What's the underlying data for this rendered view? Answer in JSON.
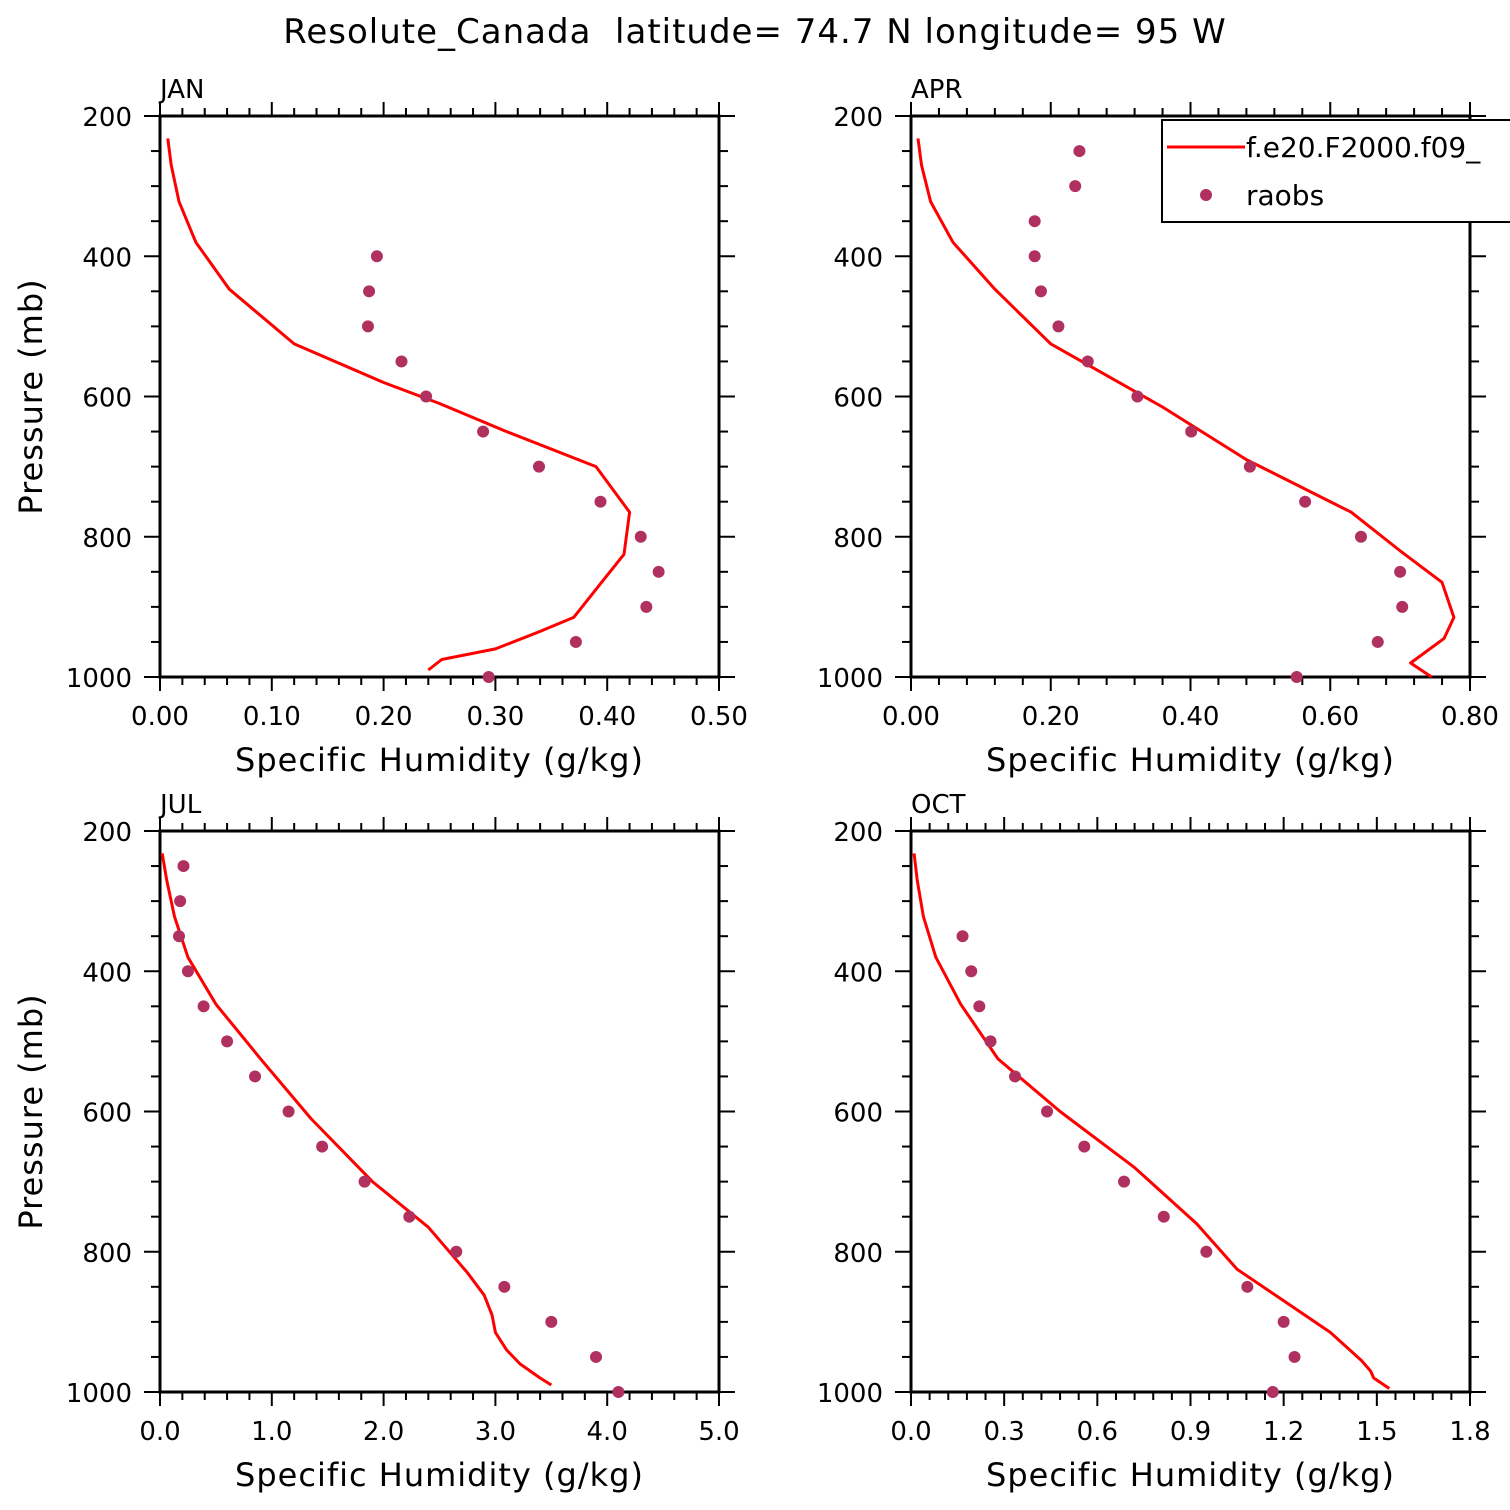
{
  "title": "Resolute_Canada  latitude= 74.7 N longitude= 95 W",
  "legend": {
    "model": "f.e20.F2000.f09_",
    "obs": "raobs"
  },
  "colors": {
    "model_line": "#ff0000",
    "obs_marker": "#b03060"
  },
  "chart_data": [
    {
      "type": "line",
      "panel": "JAN",
      "xlabel": "Specific Humidity (g/kg)",
      "ylabel": "Pressure (mb)",
      "xlim": [
        0.0,
        0.5
      ],
      "ylim": [
        200,
        1000
      ],
      "y_inverted": true,
      "xticks": [
        "0.00",
        "0.10",
        "0.20",
        "0.30",
        "0.40",
        "0.50"
      ],
      "yticks": [
        "200",
        "400",
        "600",
        "800",
        "1000"
      ],
      "series": [
        {
          "name": "f.e20.F2000.f09_",
          "kind": "line",
          "x": [
            0.007,
            0.01,
            0.017,
            0.032,
            0.062,
            0.12,
            0.2,
            0.25,
            0.31,
            0.39,
            0.42,
            0.415,
            0.395,
            0.37,
            0.34,
            0.3,
            0.252,
            0.24
          ],
          "y": [
            232,
            270,
            322,
            380,
            447,
            525,
            580,
            610,
            650,
            700,
            765,
            825,
            865,
            915,
            935,
            960,
            975,
            990
          ]
        },
        {
          "name": "raobs",
          "kind": "scatter",
          "x": [
            0.194,
            0.187,
            0.186,
            0.216,
            0.238,
            0.289,
            0.339,
            0.394,
            0.43,
            0.446,
            0.435,
            0.372,
            0.294
          ],
          "y": [
            400,
            450,
            500,
            550,
            600,
            650,
            700,
            750,
            800,
            850,
            900,
            950,
            1000
          ]
        }
      ]
    },
    {
      "type": "line",
      "panel": "APR",
      "xlabel": "Specific Humidity (g/kg)",
      "ylabel": "",
      "xlim": [
        0.0,
        0.8
      ],
      "ylim": [
        200,
        1000
      ],
      "y_inverted": true,
      "xticks": [
        "0.00",
        "0.20",
        "0.40",
        "0.60",
        "0.80"
      ],
      "yticks": [
        "200",
        "400",
        "600",
        "800",
        "1000"
      ],
      "legend_position": "top-right",
      "series": [
        {
          "name": "f.e20.F2000.f09_",
          "kind": "line",
          "x": [
            0.01,
            0.015,
            0.028,
            0.06,
            0.12,
            0.2,
            0.36,
            0.48,
            0.63,
            0.7,
            0.76,
            0.777,
            0.763,
            0.715,
            0.745
          ],
          "y": [
            232,
            270,
            322,
            380,
            447,
            525,
            615,
            690,
            765,
            820,
            865,
            915,
            945,
            980,
            1000
          ]
        },
        {
          "name": "raobs",
          "kind": "scatter",
          "x": [
            0.241,
            0.235,
            0.177,
            0.177,
            0.186,
            0.211,
            0.253,
            0.324,
            0.401,
            0.485,
            0.564,
            0.644,
            0.7,
            0.703,
            0.668,
            0.552
          ],
          "y": [
            250,
            300,
            350,
            400,
            450,
            500,
            550,
            600,
            650,
            700,
            750,
            800,
            850,
            900,
            950,
            1000
          ]
        }
      ]
    },
    {
      "type": "line",
      "panel": "JUL",
      "xlabel": "Specific Humidity (g/kg)",
      "ylabel": "Pressure (mb)",
      "xlim": [
        0.0,
        5.0
      ],
      "ylim": [
        200,
        1000
      ],
      "y_inverted": true,
      "xticks": [
        "0.0",
        "1.0",
        "2.0",
        "3.0",
        "4.0",
        "5.0"
      ],
      "yticks": [
        "200",
        "400",
        "600",
        "800",
        "1000"
      ],
      "series": [
        {
          "name": "f.e20.F2000.f09_",
          "kind": "line",
          "x": [
            0.02,
            0.06,
            0.13,
            0.25,
            0.5,
            0.9,
            1.35,
            1.9,
            2.4,
            2.75,
            2.9,
            2.97,
            3.0,
            3.1,
            3.22,
            3.4,
            3.5
          ],
          "y": [
            232,
            270,
            322,
            380,
            447,
            525,
            610,
            700,
            765,
            830,
            862,
            890,
            915,
            940,
            960,
            980,
            990
          ]
        },
        {
          "name": "raobs",
          "kind": "scatter",
          "x": [
            0.21,
            0.18,
            0.17,
            0.25,
            0.39,
            0.6,
            0.85,
            1.15,
            1.45,
            1.83,
            2.23,
            2.65,
            3.08,
            3.5,
            3.9,
            4.1
          ],
          "y": [
            250,
            300,
            350,
            400,
            450,
            500,
            550,
            600,
            650,
            700,
            750,
            800,
            850,
            900,
            950,
            1000
          ]
        }
      ]
    },
    {
      "type": "line",
      "panel": "OCT",
      "xlabel": "Specific Humidity (g/kg)",
      "ylabel": "",
      "xlim": [
        0.0,
        1.8
      ],
      "ylim": [
        200,
        1000
      ],
      "y_inverted": true,
      "xticks": [
        "0.0",
        "0.3",
        "0.6",
        "0.9",
        "1.2",
        "1.5",
        "1.8"
      ],
      "yticks": [
        "200",
        "400",
        "600",
        "800",
        "1000"
      ],
      "series": [
        {
          "name": "f.e20.F2000.f09_",
          "kind": "line",
          "x": [
            0.01,
            0.02,
            0.04,
            0.08,
            0.16,
            0.28,
            0.48,
            0.72,
            0.92,
            1.05,
            1.2,
            1.35,
            1.45,
            1.48,
            1.49,
            1.54
          ],
          "y": [
            232,
            270,
            322,
            380,
            447,
            525,
            600,
            680,
            760,
            825,
            870,
            915,
            955,
            970,
            980,
            995
          ]
        },
        {
          "name": "raobs",
          "kind": "scatter",
          "x": [
            0.166,
            0.194,
            0.22,
            0.256,
            0.335,
            0.438,
            0.558,
            0.686,
            0.814,
            0.951,
            1.083,
            1.2,
            1.235,
            1.165
          ],
          "y": [
            350,
            400,
            450,
            500,
            550,
            600,
            650,
            700,
            750,
            800,
            850,
            900,
            950,
            1000
          ]
        }
      ]
    }
  ]
}
